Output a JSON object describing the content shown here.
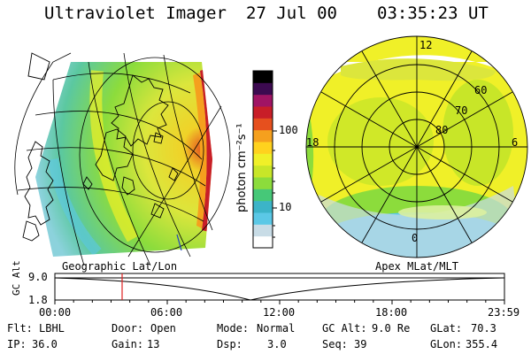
{
  "header": {
    "title": "Ultraviolet Imager",
    "date": "27 Jul 00",
    "time": "03:35:23 UT"
  },
  "colorbar": {
    "label": "photon cm⁻²s⁻¹",
    "ticks": [
      "100",
      "10"
    ],
    "colors": [
      "#ffffff",
      "#c8dce6",
      "#5bc8e6",
      "#3cb4c8",
      "#46c878",
      "#8cdc3c",
      "#c8e628",
      "#f0f028",
      "#ffd21e",
      "#f5a01e",
      "#e6501e",
      "#c81e28",
      "#a01464",
      "#3c0a50",
      "#000000"
    ]
  },
  "left_map": {
    "label": "Geographic Lat/Lon"
  },
  "right_map": {
    "label": "Apex MLat/MLT",
    "mlt_labels": [
      "12",
      "18",
      "6",
      "0"
    ],
    "lat_labels": [
      "60",
      "70",
      "80"
    ]
  },
  "altitude_plot": {
    "ylabel": "GC Alt",
    "ymax": "9.0",
    "ymin": "1.8",
    "xticks": [
      "00:00",
      "06:00",
      "12:00",
      "18:00",
      "23:59"
    ],
    "current_time_hours": 3.59
  },
  "info": {
    "flt_label": "Flt:",
    "flt_value": "LBHL",
    "ip_label": "IP:",
    "ip_value": "36.0",
    "door_label": "Door:",
    "door_value": "Open",
    "gain_label": "Gain:",
    "gain_value": "13",
    "mode_label": "Mode:",
    "mode_value": "Normal",
    "dsp_label": "Dsp:",
    "dsp_value": "3.0",
    "gcalt_label": "GC Alt:",
    "gcalt_value": "9.0 Re",
    "seq_label": "Seq:",
    "seq_value": "39",
    "glat_label": "GLat:",
    "glat_value": "70.3",
    "glon_label": "GLon:",
    "glon_value": "355.4"
  }
}
